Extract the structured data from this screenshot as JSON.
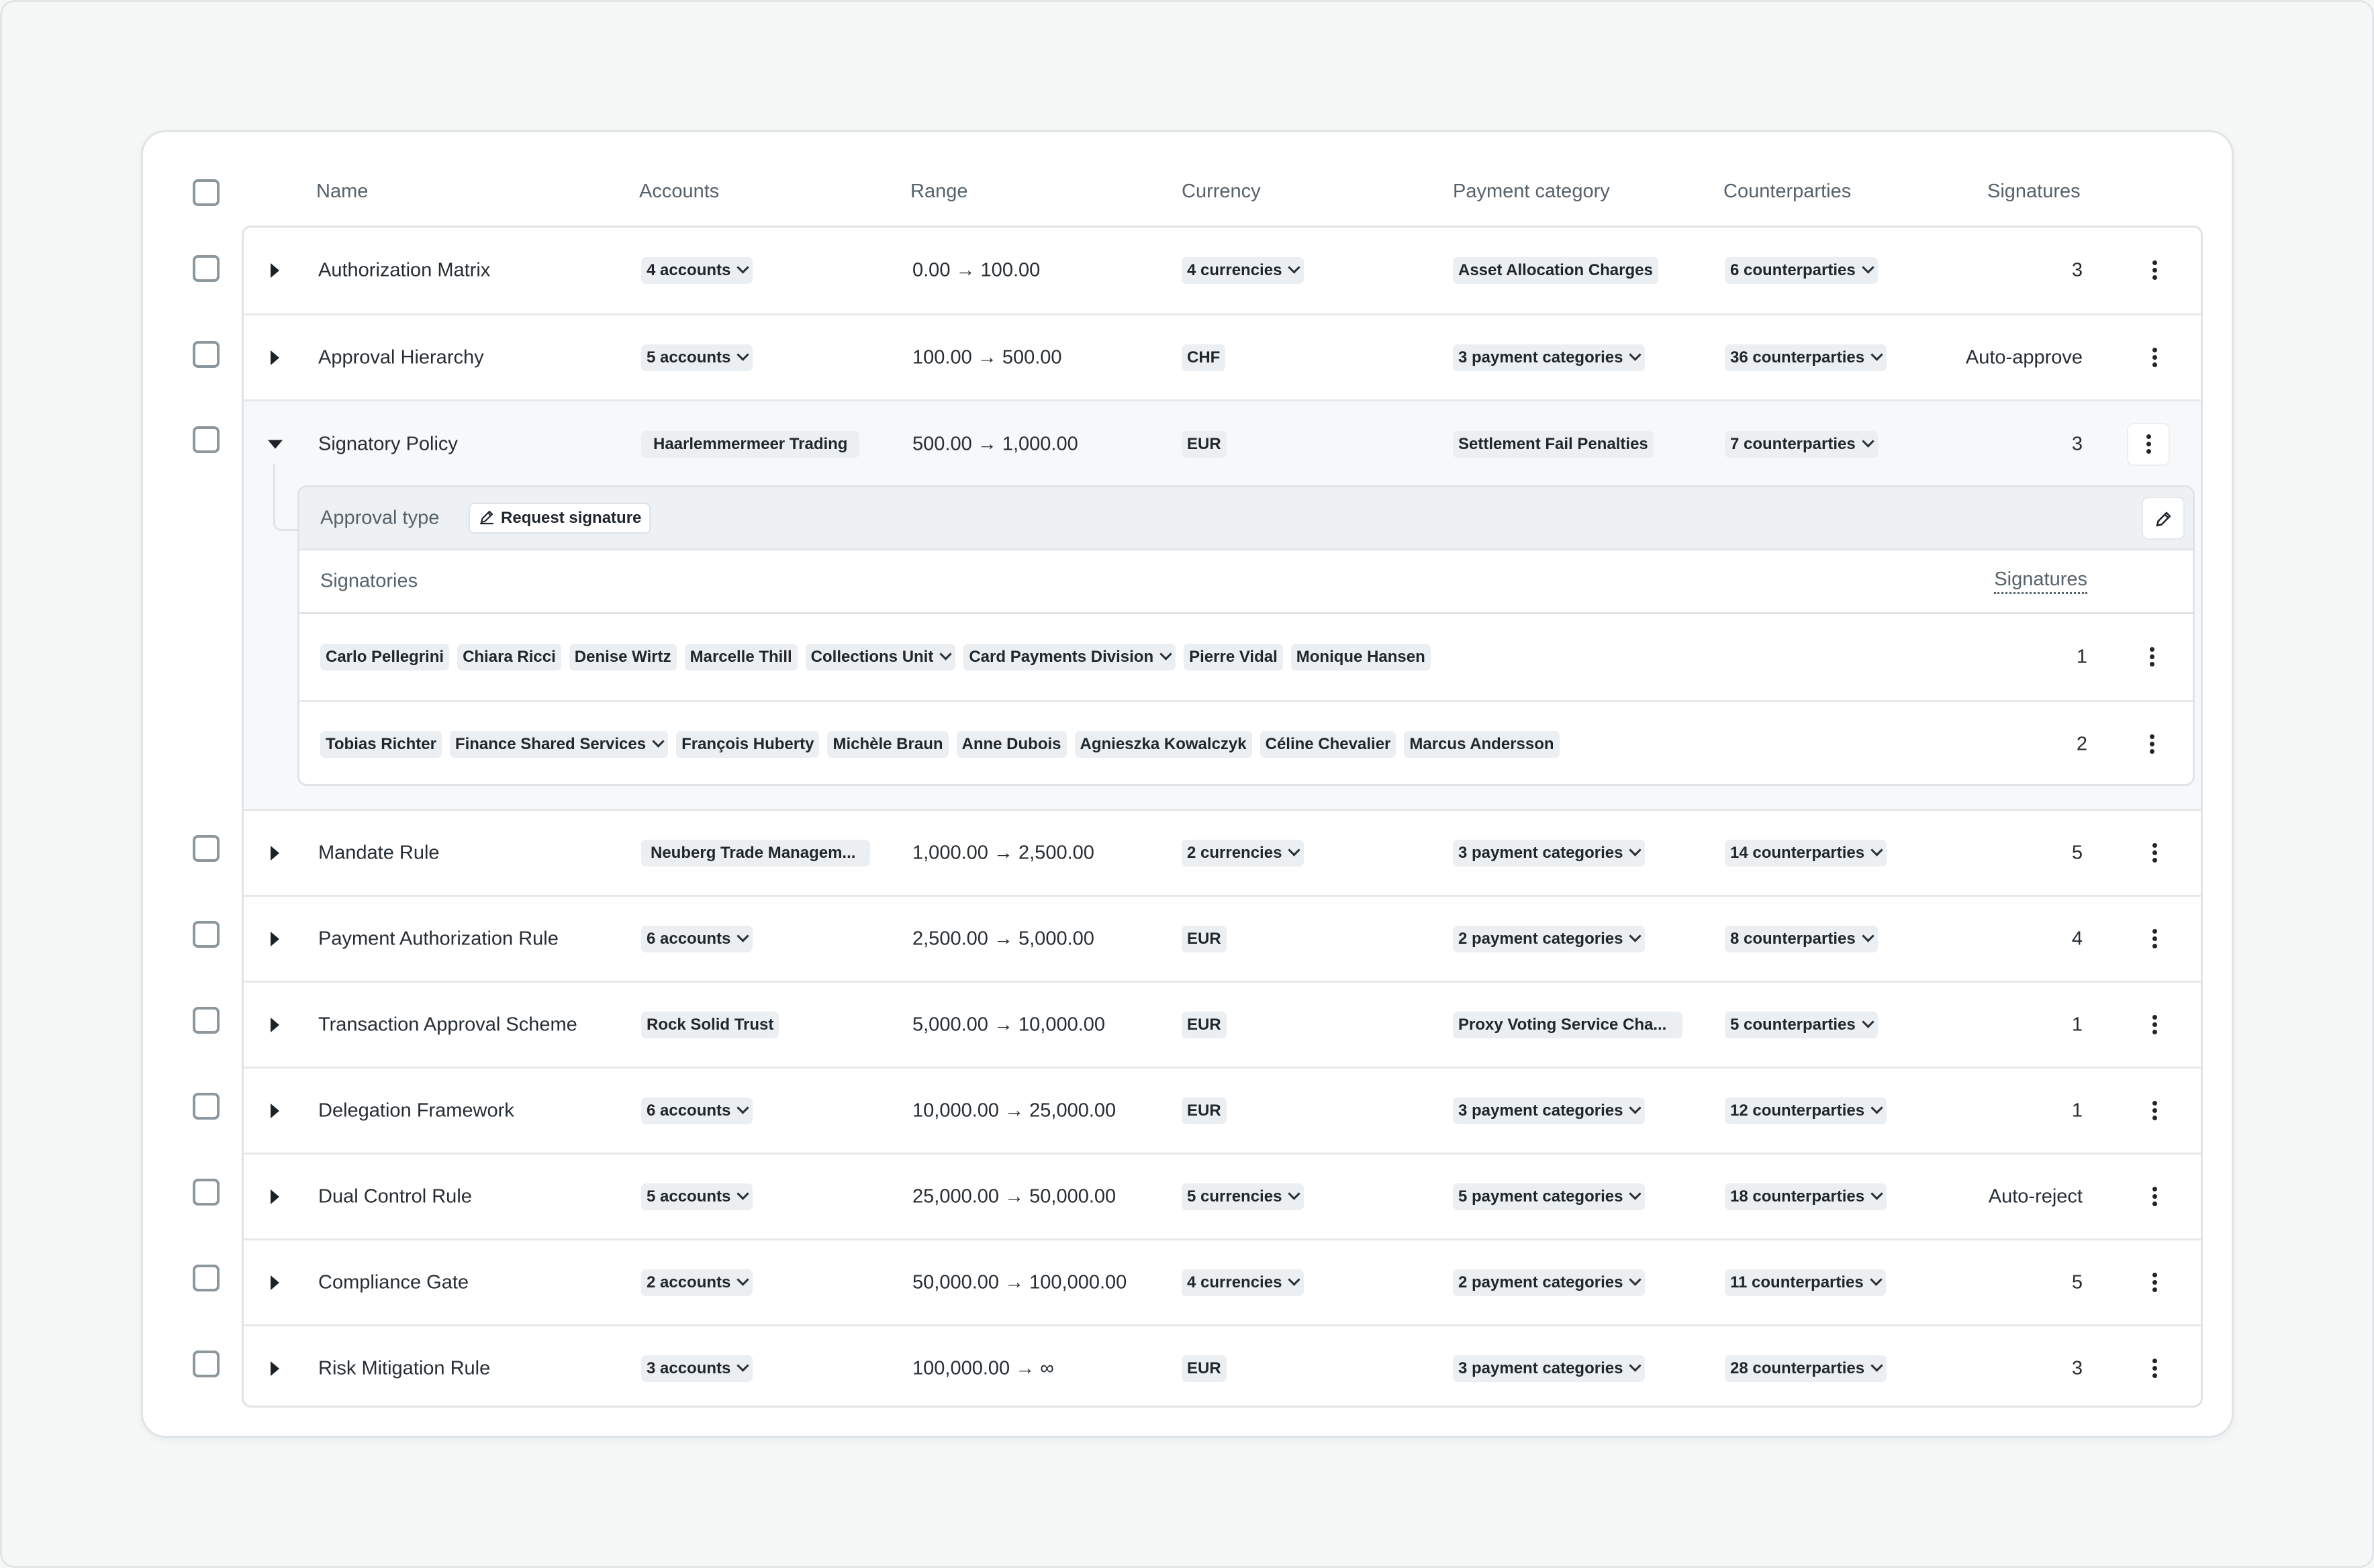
{
  "header": {
    "name": "Name",
    "accounts": "Accounts",
    "range": "Range",
    "currency": "Currency",
    "payment_category": "Payment category",
    "counterparties": "Counterparties",
    "signatures": "Signatures"
  },
  "rows": [
    {
      "name": "Authorization Matrix",
      "accounts": "4 accounts",
      "range": "0.00 → 100.00",
      "currency": "4 currencies",
      "payment_category": "Asset Allocation Charges",
      "counterparties": "6 counterparties",
      "signatures": "3"
    },
    {
      "name": "Approval Hierarchy",
      "accounts": "5 accounts",
      "range": "100.00 → 500.00",
      "currency": "CHF",
      "payment_category": "3 payment categories",
      "counterparties": "36 counterparties",
      "signatures": "Auto-approve"
    },
    {
      "name": "Signatory Policy",
      "accounts": "Haarlemmermeer Trading",
      "range": "500.00 → 1,000.00",
      "currency": "EUR",
      "payment_category": "Settlement Fail Penalties",
      "counterparties": "7 counterparties",
      "signatures": "3"
    },
    {
      "name": "Mandate Rule",
      "accounts": "Neuberg Trade Managem...",
      "range": "1,000.00 → 2,500.00",
      "currency": "2 currencies",
      "payment_category": "3 payment categories",
      "counterparties": "14 counterparties",
      "signatures": "5"
    },
    {
      "name": "Payment Authorization Rule",
      "accounts": "6 accounts",
      "range": "2,500.00 → 5,000.00",
      "currency": "EUR",
      "payment_category": "2 payment categories",
      "counterparties": "8 counterparties",
      "signatures": "4"
    },
    {
      "name": "Transaction Approval Scheme",
      "accounts": "Rock Solid Trust",
      "range": "5,000.00 → 10,000.00",
      "currency": "EUR",
      "payment_category": "Proxy Voting Service Cha...",
      "counterparties": "5 counterparties",
      "signatures": "1"
    },
    {
      "name": "Delegation Framework",
      "accounts": "6 accounts",
      "range": "10,000.00 → 25,000.00",
      "currency": "EUR",
      "payment_category": "3 payment categories",
      "counterparties": "12 counterparties",
      "signatures": "1"
    },
    {
      "name": "Dual Control Rule",
      "accounts": "5 accounts",
      "range": "25,000.00 → 50,000.00",
      "currency": "5 currencies",
      "payment_category": "5 payment categories",
      "counterparties": "18 counterparties",
      "signatures": "Auto-reject"
    },
    {
      "name": "Compliance Gate",
      "accounts": "2 accounts",
      "range": "50,000.00 → 100,000.00",
      "currency": "4 currencies",
      "payment_category": "2 payment categories",
      "counterparties": "11 counterparties",
      "signatures": "5"
    },
    {
      "name": "Risk Mitigation Rule",
      "accounts": "3 accounts",
      "range": "100,000.00 → ∞",
      "currency": "EUR",
      "payment_category": "3 payment categories",
      "counterparties": "28 counterparties",
      "signatures": "3"
    }
  ],
  "detail": {
    "approval_label": "Approval type",
    "approval_value": "Request signature",
    "signatories_label": "Signatories",
    "signatures_label": "Signatures",
    "groups": [
      {
        "chips": [
          "Carlo Pellegrini",
          "Chiara Ricci",
          "Denise Wirtz",
          "Marcelle Thill",
          "Collections Unit",
          "Card Payments Division",
          "Pierre Vidal",
          "Monique Hansen"
        ],
        "signatures": "1"
      },
      {
        "chips": [
          "Tobias Richter",
          "Finance Shared Services",
          "François Huberty",
          "Michèle Braun",
          "Anne Dubois",
          "Agnieszka Kowalczyk",
          "Céline Chevalier",
          "Marcus Andersson"
        ],
        "signatures": "2"
      }
    ]
  },
  "icons": [
    "caret-right-icon",
    "caret-down-icon",
    "chevron-down-icon",
    "kebab-menu-icon",
    "pencil-icon",
    "signature-pen-icon"
  ],
  "colors": {
    "background": "#f6f8f8",
    "card": "#ffffff",
    "chip": "#eceff1",
    "detail_header": "#eef1f3"
  }
}
